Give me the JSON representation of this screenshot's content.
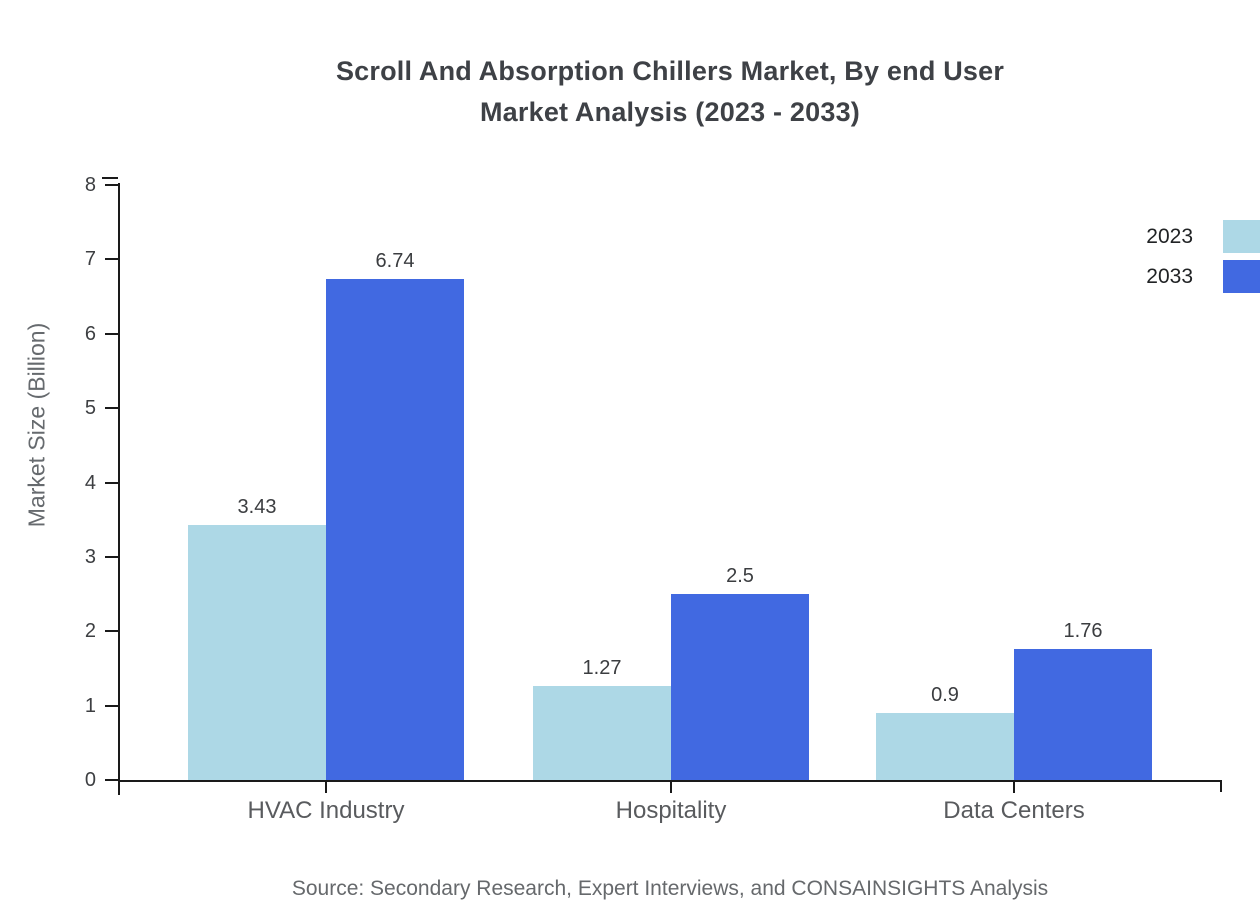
{
  "header": {
    "title_line1": "Scroll And Absorption Chillers Market, By end User",
    "title_line2": "Market Analysis (2023 - 2033)"
  },
  "chart_data": {
    "type": "bar",
    "title": "Scroll And Absorption Chillers Market, By end User Market Analysis (2023 - 2033)",
    "categories": [
      "HVAC Industry",
      "Hospitality",
      "Data Centers"
    ],
    "series": [
      {
        "name": "2023",
        "color": "#ADD8E6",
        "values": [
          3.43,
          1.27,
          0.9
        ]
      },
      {
        "name": "2033",
        "color": "#4169E1",
        "values": [
          6.74,
          2.5,
          1.76
        ]
      }
    ],
    "value_labels": [
      "3.43",
      "6.74",
      "1.27",
      "2.5",
      "0.9",
      "1.76"
    ],
    "xlabel": "",
    "ylabel": "Market Size (Billion)",
    "ylim": [
      0,
      8
    ],
    "yticks": [
      0,
      1,
      2,
      3,
      4,
      5,
      6,
      7,
      8
    ],
    "grid": false,
    "legend_position": "top-right",
    "axis_color": "#1a1a1a"
  },
  "footer": {
    "source": "Source: Secondary Research, Expert Interviews, and CONSAINSIGHTS Analysis"
  }
}
